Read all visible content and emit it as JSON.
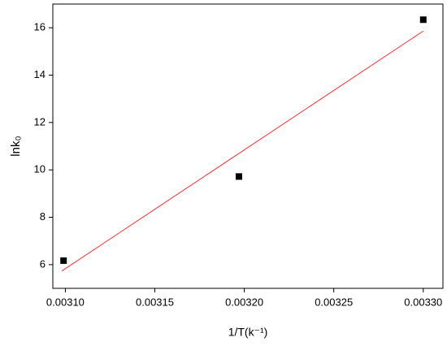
{
  "chart_data": {
    "type": "scatter",
    "x_label": "1/T(k⁻¹)",
    "y_label": "lnk₀",
    "series": [
      {
        "kind": "points",
        "color": "#000000",
        "x": [
          0.003099,
          0.003197,
          0.0033
        ],
        "values": [
          6.17,
          9.72,
          16.34
        ]
      },
      {
        "kind": "fit",
        "color": "#ff2a2a",
        "x": [
          0.003098,
          0.0033
        ],
        "values": [
          5.73,
          15.86
        ]
      }
    ],
    "xlim": [
      0.003093,
      0.003311
    ],
    "ylim": [
      5,
      17
    ],
    "xticks": [
      {
        "value": 0.0031,
        "label": "0.00310"
      },
      {
        "value": 0.00315,
        "label": "0.00315"
      },
      {
        "value": 0.0032,
        "label": "0.00320"
      },
      {
        "value": 0.00325,
        "label": "0.00325"
      },
      {
        "value": 0.0033,
        "label": "0.00330"
      }
    ],
    "yticks": [
      6,
      8,
      10,
      12,
      14,
      16
    ],
    "grid": false
  }
}
